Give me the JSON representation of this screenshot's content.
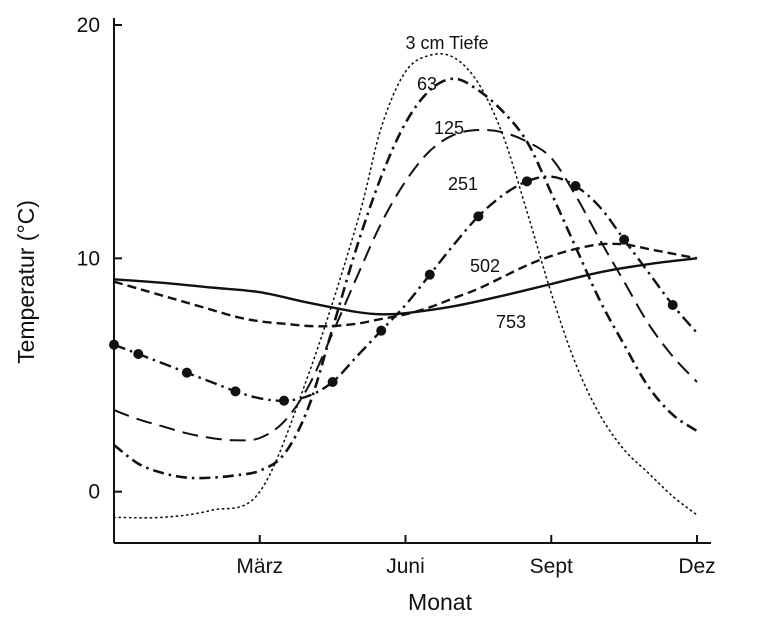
{
  "chart_data": {
    "type": "line",
    "xlabel": "Monat",
    "ylabel": "Temperatur (°C)",
    "ylim": [
      -2.2,
      20.3
    ],
    "xlim": [
      0,
      12
    ],
    "yticks": [
      0,
      10,
      20
    ],
    "xticks": [
      {
        "value": 3,
        "label": "März"
      },
      {
        "value": 6,
        "label": "Juni"
      },
      {
        "value": 9,
        "label": "Sept"
      },
      {
        "value": 12,
        "label": "Dez"
      }
    ],
    "grid": false,
    "series": [
      {
        "name": "3 cm Tiefe",
        "style": "dotted",
        "points": [
          [
            0,
            -1.1
          ],
          [
            1,
            -1.1
          ],
          [
            2,
            -0.8
          ],
          [
            3,
            0
          ],
          [
            4,
            5
          ],
          [
            5,
            11.5
          ],
          [
            5.5,
            15.6
          ],
          [
            6,
            18
          ],
          [
            6.5,
            18.7
          ],
          [
            7,
            18.6
          ],
          [
            7.5,
            17.5
          ],
          [
            8,
            15.3
          ],
          [
            8.5,
            12
          ],
          [
            9,
            8.5
          ],
          [
            9.5,
            5.5
          ],
          [
            10,
            3.3
          ],
          [
            10.5,
            1.8
          ],
          [
            11,
            0.8
          ],
          [
            11.5,
            -0.2
          ],
          [
            12,
            -1
          ]
        ]
      },
      {
        "name": "63",
        "style": "dash-dot",
        "points": [
          [
            0,
            2
          ],
          [
            0.5,
            1.2
          ],
          [
            1,
            0.8
          ],
          [
            1.5,
            0.6
          ],
          [
            2,
            0.6
          ],
          [
            2.5,
            0.7
          ],
          [
            3,
            0.9
          ],
          [
            3.5,
            1.6
          ],
          [
            4,
            3.6
          ],
          [
            4.5,
            7
          ],
          [
            5,
            10.5
          ],
          [
            5.5,
            13.5
          ],
          [
            6,
            15.8
          ],
          [
            6.5,
            17.2
          ],
          [
            7,
            17.7
          ],
          [
            7.5,
            17.2
          ],
          [
            8,
            16.3
          ],
          [
            8.5,
            15
          ],
          [
            9,
            12.8
          ],
          [
            9.5,
            10.5
          ],
          [
            10,
            8.2
          ],
          [
            10.5,
            6.3
          ],
          [
            11,
            4.5
          ],
          [
            11.5,
            3.3
          ],
          [
            12,
            2.6
          ]
        ]
      },
      {
        "name": "125",
        "style": "dashed",
        "points": [
          [
            0,
            3.5
          ],
          [
            0.5,
            3.1
          ],
          [
            1,
            2.8
          ],
          [
            1.5,
            2.5
          ],
          [
            2,
            2.3
          ],
          [
            2.5,
            2.2
          ],
          [
            3,
            2.3
          ],
          [
            3.5,
            3
          ],
          [
            4,
            4.5
          ],
          [
            4.5,
            6.8
          ],
          [
            5,
            9.2
          ],
          [
            5.5,
            11.5
          ],
          [
            6,
            13.3
          ],
          [
            6.5,
            14.6
          ],
          [
            7,
            15.3
          ],
          [
            7.5,
            15.5
          ],
          [
            8,
            15.4
          ],
          [
            8.5,
            15
          ],
          [
            9,
            14.3
          ],
          [
            9.5,
            12.7
          ],
          [
            10,
            10.8
          ],
          [
            10.5,
            9
          ],
          [
            11,
            7.2
          ],
          [
            11.5,
            5.8
          ],
          [
            12,
            4.7
          ]
        ]
      },
      {
        "name": "251",
        "style": "dash-dot-marker",
        "points": [
          [
            0,
            6.3
          ],
          [
            0.5,
            5.9
          ],
          [
            1,
            5.5
          ],
          [
            1.5,
            5.1
          ],
          [
            2,
            4.7
          ],
          [
            2.5,
            4.3
          ],
          [
            3,
            4
          ],
          [
            3.5,
            3.9
          ],
          [
            4,
            4.1
          ],
          [
            4.5,
            4.7
          ],
          [
            5,
            5.8
          ],
          [
            5.5,
            6.9
          ],
          [
            6,
            8
          ],
          [
            6.5,
            9.3
          ],
          [
            7,
            10.6
          ],
          [
            7.5,
            11.8
          ],
          [
            8,
            12.7
          ],
          [
            8.5,
            13.3
          ],
          [
            9,
            13.5
          ],
          [
            9.5,
            13.1
          ],
          [
            10,
            12.2
          ],
          [
            10.5,
            10.8
          ],
          [
            11,
            9.4
          ],
          [
            11.5,
            8
          ],
          [
            12,
            6.8
          ]
        ]
      },
      {
        "name": "502",
        "style": "wavy-dashed",
        "points": [
          [
            0,
            9
          ],
          [
            0.5,
            8.7
          ],
          [
            1,
            8.4
          ],
          [
            1.5,
            8.1
          ],
          [
            2,
            7.8
          ],
          [
            2.5,
            7.5
          ],
          [
            3,
            7.3
          ],
          [
            3.5,
            7.2
          ],
          [
            4,
            7.1
          ],
          [
            4.5,
            7.1
          ],
          [
            5,
            7.2
          ],
          [
            5.5,
            7.4
          ],
          [
            6,
            7.6
          ],
          [
            6.5,
            7.9
          ],
          [
            7,
            8.3
          ],
          [
            7.5,
            8.7
          ],
          [
            8,
            9.2
          ],
          [
            8.5,
            9.7
          ],
          [
            9,
            10.1
          ],
          [
            9.5,
            10.4
          ],
          [
            10,
            10.6
          ],
          [
            10.5,
            10.6
          ],
          [
            11,
            10.4
          ],
          [
            11.5,
            10.2
          ],
          [
            12,
            10
          ]
        ]
      },
      {
        "name": "753",
        "style": "solid",
        "points": [
          [
            0,
            9.1
          ],
          [
            1,
            8.95
          ],
          [
            2,
            8.75
          ],
          [
            3,
            8.55
          ],
          [
            4,
            8.1
          ],
          [
            5,
            7.7
          ],
          [
            5.5,
            7.6
          ],
          [
            6,
            7.65
          ],
          [
            7,
            7.95
          ],
          [
            8,
            8.4
          ],
          [
            9,
            8.9
          ],
          [
            10,
            9.4
          ],
          [
            11,
            9.75
          ],
          [
            12,
            10
          ]
        ]
      }
    ]
  }
}
